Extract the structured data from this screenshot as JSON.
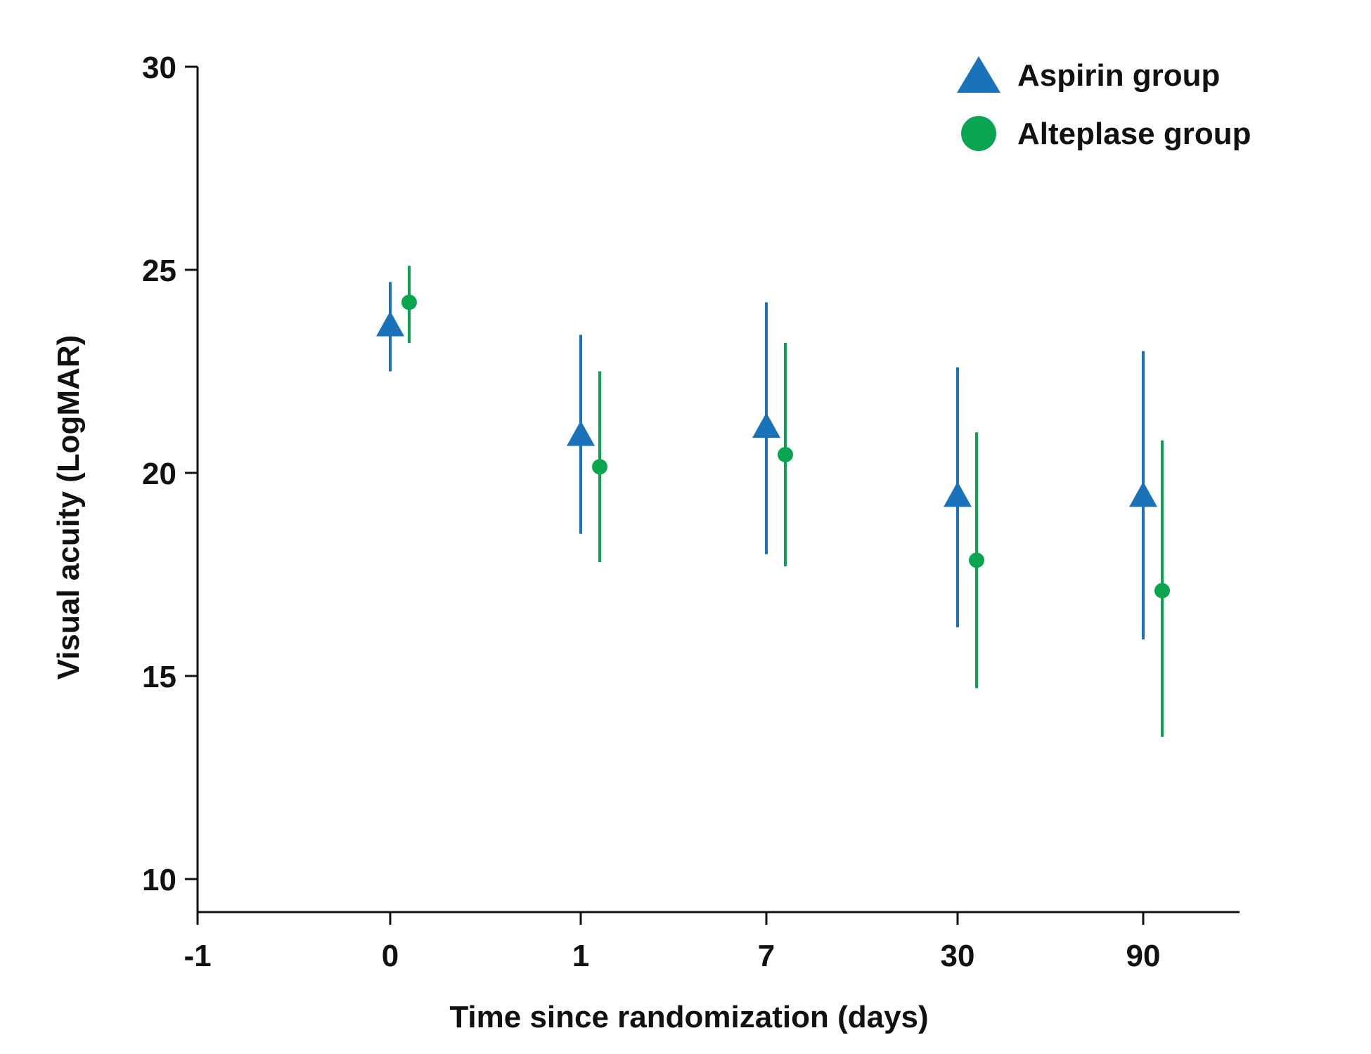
{
  "chart_data": {
    "type": "scatter",
    "xlabel": "Time since randomization (days)",
    "ylabel": "Visual acuity (LogMAR)",
    "x_categories": [
      "-1",
      "0",
      "1",
      "7",
      "30",
      "90"
    ],
    "yticks": [
      "10",
      "15",
      "20",
      "25",
      "30"
    ],
    "ylim": [
      9.2,
      30
    ],
    "grid": false,
    "legend_position": "top-right",
    "series": [
      {
        "name": "Aspirin group",
        "marker": "triangle",
        "color": "#1a73ba",
        "x": [
          "0",
          "1",
          "7",
          "30",
          "90"
        ],
        "y": [
          23.6,
          20.9,
          21.1,
          19.4,
          19.4
        ],
        "lower": [
          22.5,
          18.5,
          18.0,
          16.2,
          15.9
        ],
        "upper": [
          24.7,
          23.4,
          24.2,
          22.6,
          23.0
        ]
      },
      {
        "name": "Alteplase group",
        "marker": "circle",
        "color": "#0aa550",
        "x": [
          "0",
          "1",
          "7",
          "30",
          "90"
        ],
        "y": [
          24.2,
          20.15,
          20.45,
          17.85,
          17.1
        ],
        "lower": [
          23.2,
          17.8,
          17.7,
          14.7,
          13.5
        ],
        "upper": [
          25.1,
          22.5,
          23.2,
          21.0,
          20.8
        ]
      }
    ]
  }
}
